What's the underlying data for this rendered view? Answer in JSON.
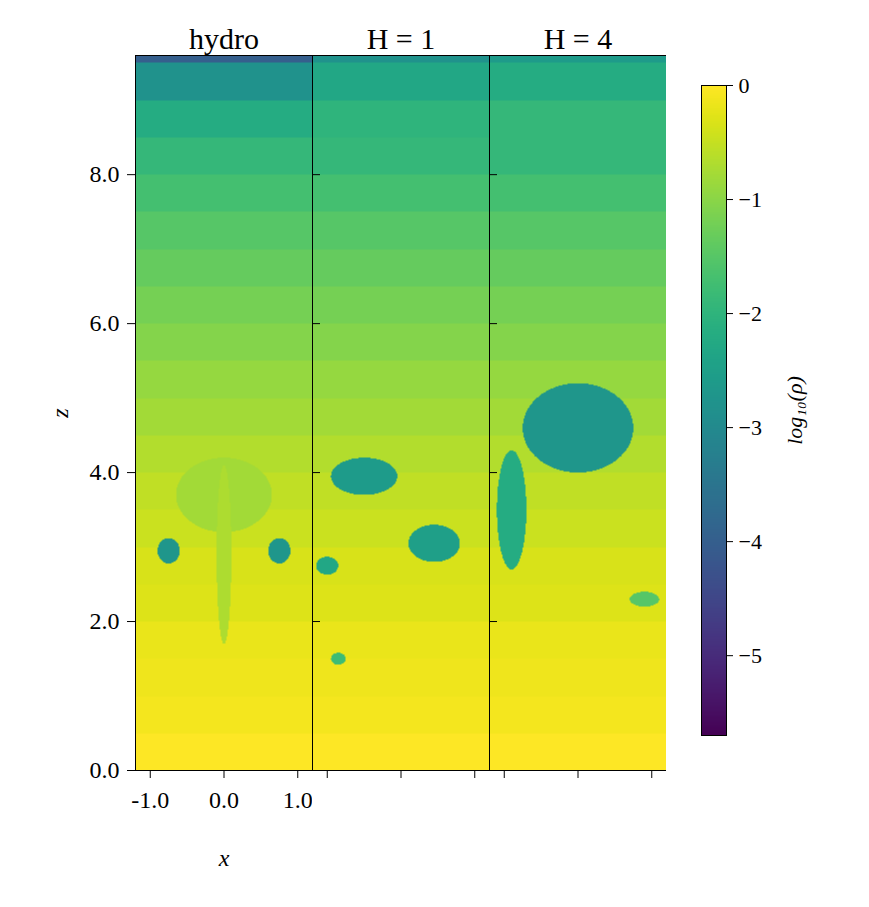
{
  "chart_data": {
    "type": "heatmap",
    "xlabel": "x",
    "ylabel": "z",
    "xlim": [
      -1.2,
      1.2
    ],
    "xticks": [
      {
        "value": -1,
        "label": "-1.0"
      },
      {
        "value": 0,
        "label": "0.0"
      },
      {
        "value": 1,
        "label": "1.0"
      }
    ],
    "ylim": [
      0,
      9.6
    ],
    "yticks": [
      {
        "value": 0,
        "label": "0.0"
      },
      {
        "value": 2,
        "label": "2.0"
      },
      {
        "value": 4,
        "label": "4.0"
      },
      {
        "value": 6,
        "label": "6.0"
      },
      {
        "value": 8,
        "label": "8.0"
      }
    ],
    "colorbar": {
      "label": "log₁₀(ρ)",
      "range": [
        -5.7,
        0
      ],
      "ticks": [
        0,
        {
          "value": -1,
          "label": "−1"
        },
        {
          "value": -2,
          "label": "−2"
        },
        {
          "value": -3,
          "label": "−3"
        },
        {
          "value": -4,
          "label": "−4"
        },
        {
          "value": -5,
          "label": "−5"
        }
      ]
    },
    "panels": [
      {
        "title": "hydro",
        "background": {
          "z": [
            0,
            0.5,
            1,
            1.5,
            2,
            2.5,
            3,
            3.5,
            4,
            4.5,
            5,
            5.5,
            6,
            6.5,
            7,
            7.5,
            8,
            8.5,
            9,
            9.5
          ],
          "values": [
            0,
            -0.1,
            -0.15,
            -0.2,
            -0.3,
            -0.35,
            -0.45,
            -0.55,
            -0.65,
            -0.8,
            -0.9,
            -1.05,
            -1.2,
            -1.35,
            -1.5,
            -1.7,
            -1.9,
            -2.2,
            -2.8,
            -4.0
          ]
        },
        "blobs": [
          {
            "x": 0,
            "z": 3.7,
            "rx": 0.65,
            "rz": 0.5,
            "value": -0.8
          },
          {
            "x": 0,
            "z": 2.9,
            "rx": 0.1,
            "rz": 1.2,
            "value": -0.7
          },
          {
            "x": -0.75,
            "z": 2.95,
            "rx": 0.15,
            "rz": 0.17,
            "value": -2.7
          },
          {
            "x": 0.75,
            "z": 2.95,
            "rx": 0.15,
            "rz": 0.17,
            "value": -2.7
          }
        ]
      },
      {
        "title": "H = 1",
        "tick_labels": false,
        "background": {
          "z": [
            0,
            0.5,
            1,
            1.5,
            2,
            2.5,
            3,
            3.5,
            4,
            4.5,
            5,
            5.5,
            6,
            6.5,
            7,
            7.5,
            8,
            8.5,
            9,
            9.5
          ],
          "values": [
            0,
            -0.1,
            -0.15,
            -0.2,
            -0.3,
            -0.35,
            -0.45,
            -0.55,
            -0.65,
            -0.8,
            -0.9,
            -1.05,
            -1.2,
            -1.35,
            -1.5,
            -1.7,
            -1.9,
            -2.0,
            -2.3,
            -2.8
          ]
        },
        "blobs": [
          {
            "x": -0.5,
            "z": 3.95,
            "rx": 0.45,
            "rz": 0.25,
            "value": -2.6
          },
          {
            "x": 0.45,
            "z": 3.05,
            "rx": 0.35,
            "rz": 0.25,
            "value": -2.5
          },
          {
            "x": -1.0,
            "z": 2.75,
            "rx": 0.15,
            "rz": 0.12,
            "value": -2.3
          },
          {
            "x": -0.85,
            "z": 1.5,
            "rx": 0.1,
            "rz": 0.08,
            "value": -1.8
          }
        ]
      },
      {
        "title": "H = 4",
        "tick_labels": false,
        "background": {
          "z": [
            0,
            0.5,
            1,
            1.5,
            2,
            2.5,
            3,
            3.5,
            4,
            4.5,
            5,
            5.5,
            6,
            6.5,
            7,
            7.5,
            8,
            8.5,
            9,
            9.5
          ],
          "values": [
            0,
            -0.1,
            -0.15,
            -0.2,
            -0.3,
            -0.35,
            -0.45,
            -0.55,
            -0.65,
            -0.8,
            -0.9,
            -1.05,
            -1.2,
            -1.35,
            -1.5,
            -1.7,
            -1.9,
            -1.9,
            -2.2,
            -2.6
          ]
        },
        "blobs": [
          {
            "x": -0.9,
            "z": 3.5,
            "rx": 0.2,
            "rz": 0.8,
            "value": -2.2
          },
          {
            "x": 0.9,
            "z": 2.3,
            "rx": 0.2,
            "rz": 0.1,
            "value": -1.5
          },
          {
            "x": 0,
            "z": 4.6,
            "rx": 0.75,
            "rz": 0.6,
            "value": -2.7
          }
        ]
      }
    ]
  }
}
